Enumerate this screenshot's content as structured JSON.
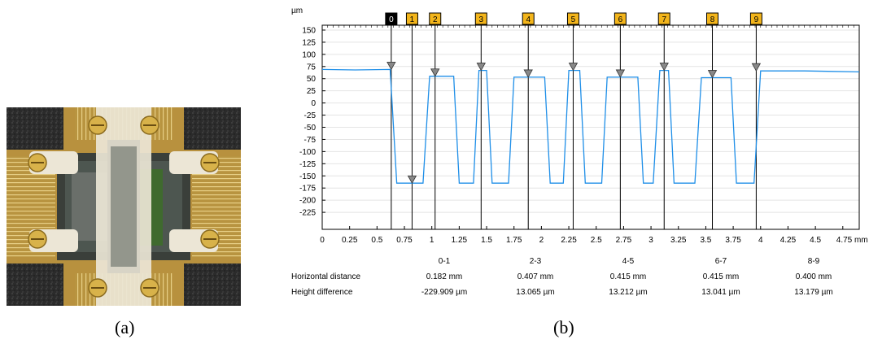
{
  "captions": {
    "a": "(a)",
    "b": "(b)"
  },
  "colors": {
    "profile_line": "#1f8fe8",
    "marker_fill": "#f3b51b",
    "marker_active_fill": "#000000",
    "photo_background": "#2a2a2a",
    "board_gold": "#c9a24a",
    "clamp_white": "#ece6d6"
  },
  "chart_data": {
    "type": "line",
    "ylabel": "µm",
    "xlabel": "mm",
    "ylim": [
      -260,
      160
    ],
    "xlim": [
      0,
      4.9
    ],
    "yticks": [
      150,
      125,
      100,
      75,
      50,
      25,
      0,
      -25,
      -50,
      -75,
      -100,
      -125,
      -150,
      -175,
      -200,
      -225
    ],
    "xticks": [
      {
        "v": 0,
        "label": "0"
      },
      {
        "v": 0.25,
        "label": "0.25"
      },
      {
        "v": 0.5,
        "label": "0.5"
      },
      {
        "v": 0.75,
        "label": "0.75"
      },
      {
        "v": 1,
        "label": "1"
      },
      {
        "v": 1.25,
        "label": "1.25"
      },
      {
        "v": 1.5,
        "label": "1.5"
      },
      {
        "v": 1.75,
        "label": "1.75"
      },
      {
        "v": 2,
        "label": "2"
      },
      {
        "v": 2.25,
        "label": "2.25"
      },
      {
        "v": 2.5,
        "label": "2.5"
      },
      {
        "v": 2.75,
        "label": "2.75"
      },
      {
        "v": 3,
        "label": "3"
      },
      {
        "v": 3.25,
        "label": "3.25"
      },
      {
        "v": 3.5,
        "label": "3.5"
      },
      {
        "v": 3.75,
        "label": "3.75"
      },
      {
        "v": 4,
        "label": "4"
      },
      {
        "v": 4.25,
        "label": "4.25"
      },
      {
        "v": 4.5,
        "label": "4.5"
      },
      {
        "v": 4.75,
        "label": "4.75 mm"
      }
    ],
    "series": [
      {
        "x": [
          0,
          0.3,
          0.62,
          0.68,
          0.74,
          0.92,
          0.98,
          1.2,
          1.25,
          1.38,
          1.43,
          1.5,
          1.55,
          1.7,
          1.75,
          2.03,
          2.08,
          2.2,
          2.25,
          2.35,
          2.4,
          2.55,
          2.6,
          2.88,
          2.93,
          3.02,
          3.08,
          3.16,
          3.21,
          3.4,
          3.46,
          3.73,
          3.78,
          3.94,
          4.0,
          4.4,
          4.9
        ],
        "y": [
          69,
          68,
          69,
          -165,
          -165,
          -165,
          55,
          55,
          -165,
          -165,
          67,
          67,
          -165,
          -165,
          53,
          53,
          -165,
          -165,
          67,
          67,
          -165,
          -165,
          53,
          53,
          -165,
          -165,
          67,
          67,
          -165,
          -165,
          52,
          52,
          -165,
          -165,
          66,
          66,
          64
        ]
      }
    ],
    "markers": [
      {
        "label": "0",
        "x": 0.63,
        "y": 69,
        "active": true
      },
      {
        "label": "1",
        "x": 0.82,
        "y": -165,
        "active": false
      },
      {
        "label": "2",
        "x": 1.03,
        "y": 55,
        "active": false
      },
      {
        "label": "3",
        "x": 1.45,
        "y": 67,
        "active": false
      },
      {
        "label": "4",
        "x": 1.88,
        "y": 53,
        "active": false
      },
      {
        "label": "5",
        "x": 2.29,
        "y": 67,
        "active": false
      },
      {
        "label": "6",
        "x": 2.72,
        "y": 53,
        "active": false
      },
      {
        "label": "7",
        "x": 3.12,
        "y": 67,
        "active": false
      },
      {
        "label": "8",
        "x": 3.56,
        "y": 52,
        "active": false
      },
      {
        "label": "9",
        "x": 3.96,
        "y": 66,
        "active": false
      }
    ],
    "stats": {
      "row_labels": [
        "Horizontal distance",
        "Height difference"
      ],
      "columns": [
        {
          "pair": "0-1",
          "horizontal": "0.182 mm",
          "height": "-229.909 µm"
        },
        {
          "pair": "2-3",
          "horizontal": "0.407 mm",
          "height": "13.065 µm"
        },
        {
          "pair": "4-5",
          "horizontal": "0.415 mm",
          "height": "13.212 µm"
        },
        {
          "pair": "6-7",
          "horizontal": "0.415 mm",
          "height": "13.041 µm"
        },
        {
          "pair": "8-9",
          "horizontal": "0.400 mm",
          "height": "13.179 µm"
        }
      ]
    }
  }
}
